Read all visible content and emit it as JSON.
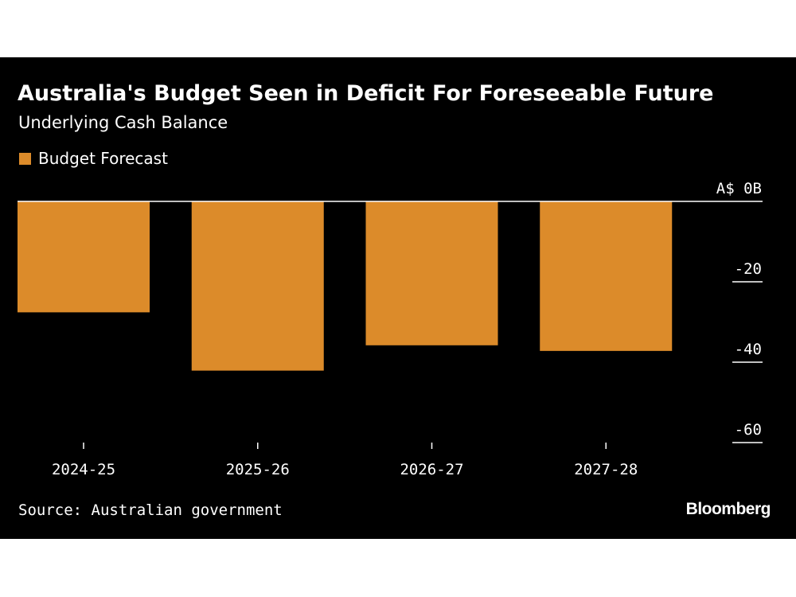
{
  "header": {
    "title": "Australia's Budget Seen in Deficit For Foreseeable Future",
    "subtitle": "Underlying Cash Balance"
  },
  "footer": {
    "source": "Source: Australian government",
    "logo": "Bloomberg"
  },
  "colors": {
    "background": "#000000",
    "bar": "#dc8b2a",
    "text": "#ffffff"
  },
  "chart_data": {
    "type": "bar",
    "title": "Australia's Budget Seen in Deficit For Foreseeable Future",
    "subtitle": "Underlying Cash Balance",
    "categories": [
      "2024-25",
      "2025-26",
      "2026-27",
      "2027-28"
    ],
    "series": [
      {
        "name": "Budget Forecast",
        "values": [
          -27.6,
          -42.1,
          -35.8,
          -37.2
        ]
      }
    ],
    "yticks": [
      0,
      -20,
      -40,
      -60
    ],
    "ytick_labels": [
      "A$ 0B",
      "-20",
      "-40",
      "-60"
    ],
    "ylim": [
      -60,
      0
    ],
    "y_axis_side": "right",
    "legend_position": "top-left",
    "grid": false
  }
}
